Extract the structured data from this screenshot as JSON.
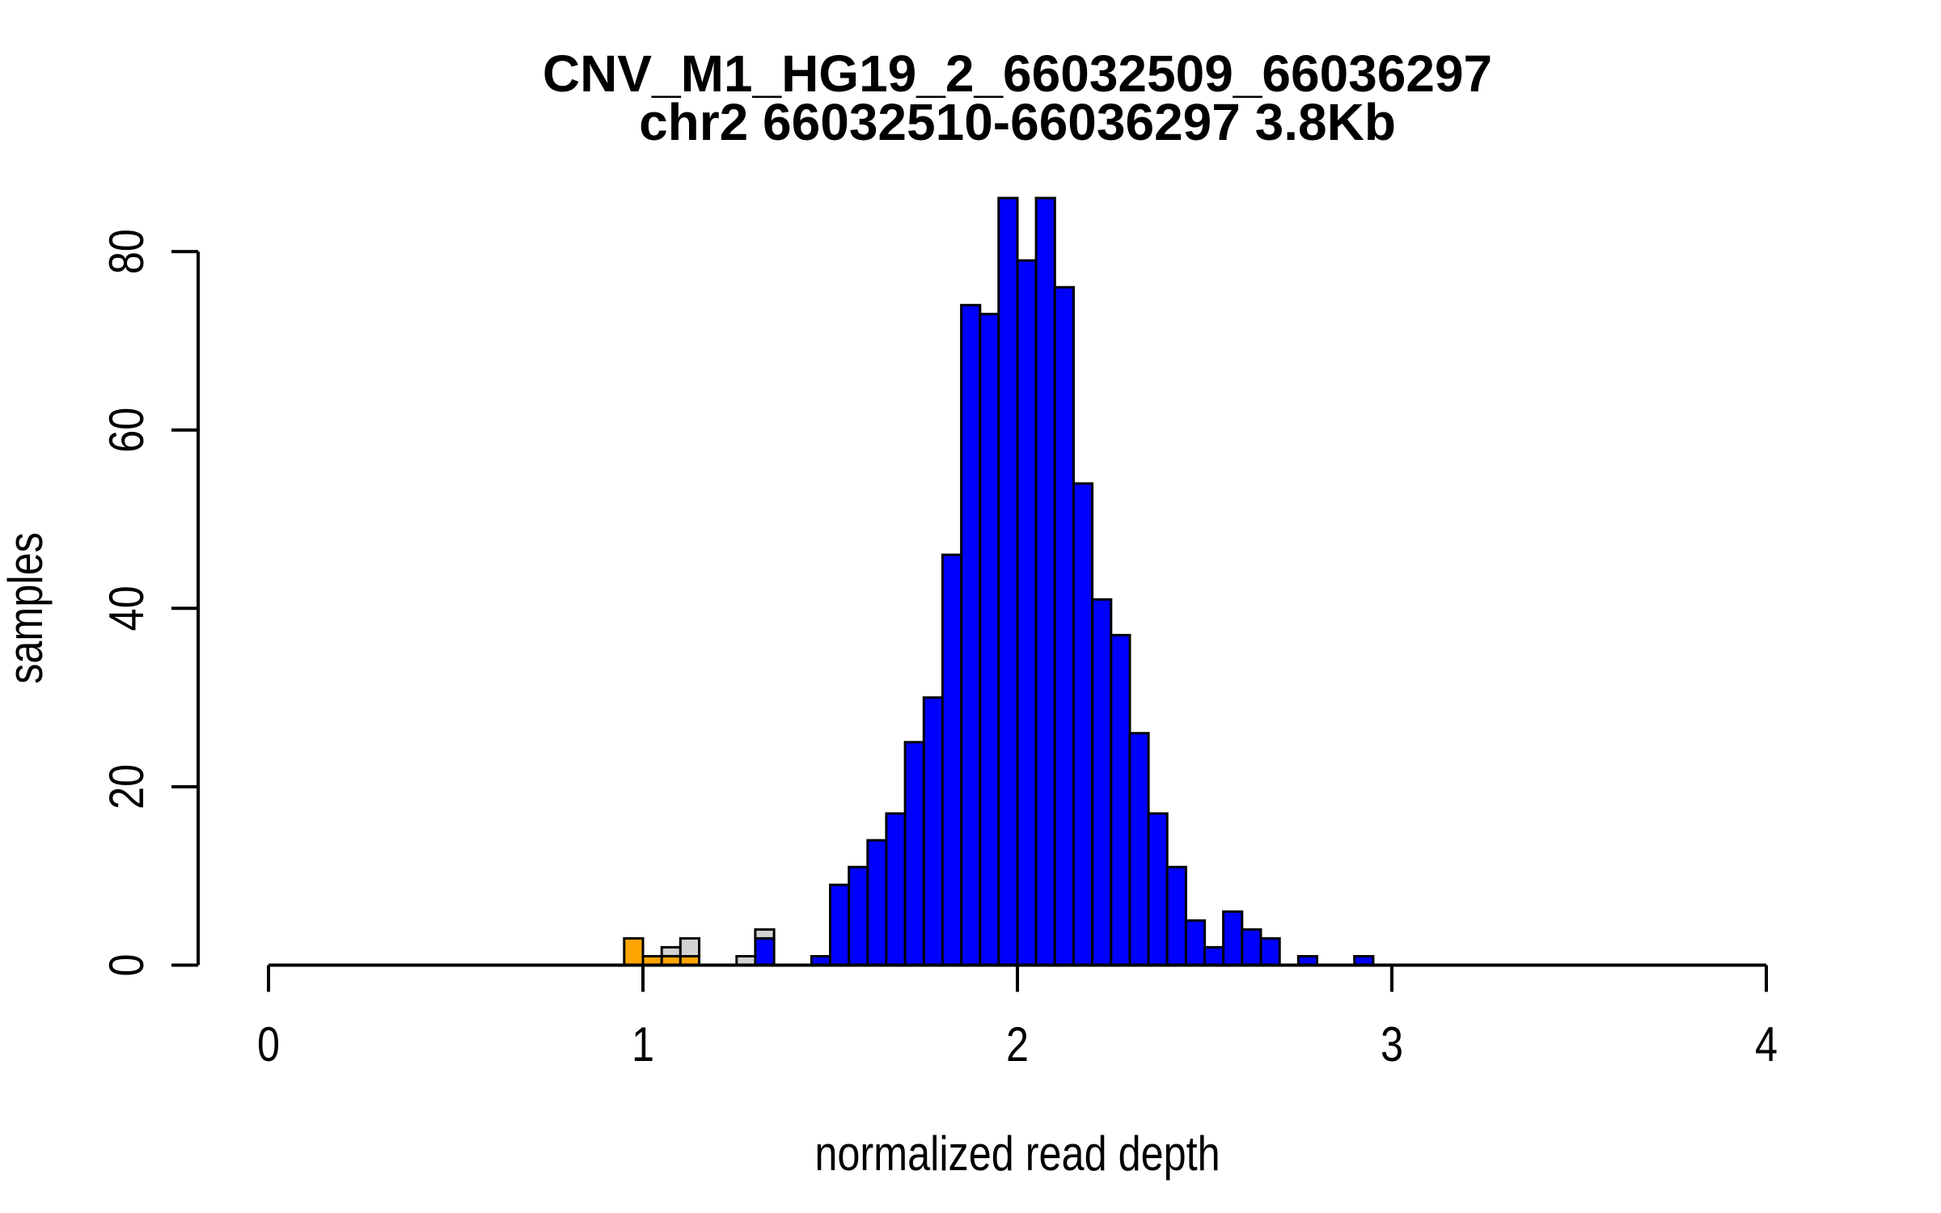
{
  "chart_data": {
    "type": "bar",
    "subtype": "stacked-histogram",
    "title": "CNV_M1_HG19_2_66032509_66036297",
    "subtitle": "chr2 66032510-66036297 3.8Kb",
    "xlabel": "normalized read depth",
    "ylabel": "samples",
    "xlim": [
      0,
      4
    ],
    "ylim": [
      0,
      80
    ],
    "x_ticks": [
      0,
      1,
      2,
      3,
      4
    ],
    "y_ticks": [
      0,
      20,
      40,
      60,
      80
    ],
    "bin_width": 0.05,
    "grid": false,
    "legend": "none",
    "background": "#FFFFFF",
    "colors": {
      "blue": "#0000FF",
      "orange": "#FFA500",
      "gray": "#D3D3D3"
    },
    "bins": [
      {
        "x": 0.95,
        "segments": [
          {
            "color": "orange",
            "count": 3
          }
        ]
      },
      {
        "x": 1.0,
        "segments": [
          {
            "color": "orange",
            "count": 1
          }
        ]
      },
      {
        "x": 1.05,
        "segments": [
          {
            "color": "orange",
            "count": 1
          },
          {
            "color": "gray",
            "count": 1
          }
        ]
      },
      {
        "x": 1.1,
        "segments": [
          {
            "color": "orange",
            "count": 1
          },
          {
            "color": "gray",
            "count": 2
          }
        ]
      },
      {
        "x": 1.25,
        "segments": [
          {
            "color": "gray",
            "count": 1
          }
        ]
      },
      {
        "x": 1.3,
        "segments": [
          {
            "color": "blue",
            "count": 3
          },
          {
            "color": "gray",
            "count": 1
          }
        ]
      },
      {
        "x": 1.45,
        "segments": [
          {
            "color": "blue",
            "count": 1
          }
        ]
      },
      {
        "x": 1.5,
        "segments": [
          {
            "color": "blue",
            "count": 9
          }
        ]
      },
      {
        "x": 1.55,
        "segments": [
          {
            "color": "blue",
            "count": 11
          }
        ]
      },
      {
        "x": 1.6,
        "segments": [
          {
            "color": "blue",
            "count": 14
          }
        ]
      },
      {
        "x": 1.65,
        "segments": [
          {
            "color": "blue",
            "count": 17
          }
        ]
      },
      {
        "x": 1.7,
        "segments": [
          {
            "color": "blue",
            "count": 25
          }
        ]
      },
      {
        "x": 1.75,
        "segments": [
          {
            "color": "blue",
            "count": 30
          }
        ]
      },
      {
        "x": 1.8,
        "segments": [
          {
            "color": "blue",
            "count": 46
          }
        ]
      },
      {
        "x": 1.85,
        "segments": [
          {
            "color": "blue",
            "count": 74
          }
        ]
      },
      {
        "x": 1.9,
        "segments": [
          {
            "color": "blue",
            "count": 73
          }
        ]
      },
      {
        "x": 1.95,
        "segments": [
          {
            "color": "blue",
            "count": 86
          }
        ]
      },
      {
        "x": 2.0,
        "segments": [
          {
            "color": "blue",
            "count": 79
          }
        ]
      },
      {
        "x": 2.05,
        "segments": [
          {
            "color": "blue",
            "count": 86
          }
        ]
      },
      {
        "x": 2.1,
        "segments": [
          {
            "color": "blue",
            "count": 76
          }
        ]
      },
      {
        "x": 2.15,
        "segments": [
          {
            "color": "blue",
            "count": 54
          }
        ]
      },
      {
        "x": 2.2,
        "segments": [
          {
            "color": "blue",
            "count": 41
          }
        ]
      },
      {
        "x": 2.25,
        "segments": [
          {
            "color": "blue",
            "count": 37
          }
        ]
      },
      {
        "x": 2.3,
        "segments": [
          {
            "color": "blue",
            "count": 26
          }
        ]
      },
      {
        "x": 2.35,
        "segments": [
          {
            "color": "blue",
            "count": 17
          }
        ]
      },
      {
        "x": 2.4,
        "segments": [
          {
            "color": "blue",
            "count": 11
          }
        ]
      },
      {
        "x": 2.45,
        "segments": [
          {
            "color": "blue",
            "count": 5
          }
        ]
      },
      {
        "x": 2.5,
        "segments": [
          {
            "color": "blue",
            "count": 2
          }
        ]
      },
      {
        "x": 2.55,
        "segments": [
          {
            "color": "blue",
            "count": 6
          }
        ]
      },
      {
        "x": 2.6,
        "segments": [
          {
            "color": "blue",
            "count": 4
          }
        ]
      },
      {
        "x": 2.65,
        "segments": [
          {
            "color": "blue",
            "count": 3
          }
        ]
      },
      {
        "x": 2.75,
        "segments": [
          {
            "color": "blue",
            "count": 1
          }
        ]
      },
      {
        "x": 2.9,
        "segments": [
          {
            "color": "blue",
            "count": 1
          }
        ]
      }
    ]
  }
}
